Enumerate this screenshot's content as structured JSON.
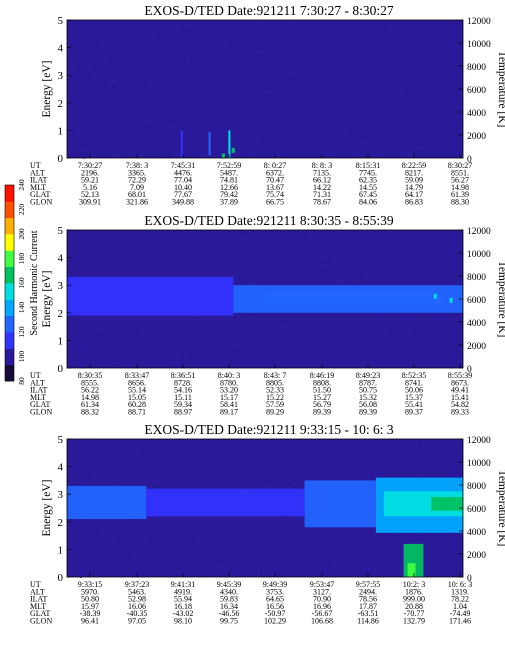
{
  "colorbar": {
    "label": "Second Harmonic Current",
    "ticks": [
      "80",
      "100",
      "120",
      "140",
      "160",
      "180",
      "200",
      "220",
      "240"
    ],
    "range": [
      80,
      240
    ],
    "colors": [
      "#1a0a3a",
      "#2a1a9a",
      "#3333ff",
      "#2266ff",
      "#00aaff",
      "#00e0e0",
      "#00c060",
      "#40ff40",
      "#ffff00",
      "#ffb000",
      "#ff5000",
      "#ff1000"
    ]
  },
  "chart_data": [
    {
      "type": "heatmap",
      "title": "EXOS-D/TED   Date:921211  7:30:27 - 8:30:27",
      "ylabel": "Energy [eV]",
      "y2label": "Temperature [K]",
      "ylim": [
        0,
        5
      ],
      "y_ticks": [
        "0",
        "1",
        "2",
        "3",
        "4",
        "5"
      ],
      "y2lim": [
        0,
        12000
      ],
      "y2_ticks": [
        "0",
        "2000",
        "4000",
        "6000",
        "8000",
        "10000",
        "12000"
      ],
      "background_level": 100,
      "features": [
        {
          "kind": "spike",
          "x": 0.41,
          "y0": 0.0,
          "y1": 1.0,
          "level": 150
        },
        {
          "kind": "spike",
          "x": 0.36,
          "y0": 0.1,
          "y1": 0.95,
          "level": 125
        },
        {
          "kind": "spike",
          "x": 0.29,
          "y0": 0.0,
          "y1": 1.0,
          "level": 118
        },
        {
          "kind": "dot",
          "x": 0.42,
          "y": 0.28,
          "level": 160
        },
        {
          "kind": "dot",
          "x": 0.395,
          "y": 0.07,
          "level": 165
        }
      ],
      "param_labels": [
        "UT",
        "ALT",
        "ILAT",
        "MLT",
        "GLAT",
        "GLON"
      ],
      "params": [
        [
          "7:30:27",
          "7:38: 3",
          "7:45:31",
          "7:52:59",
          "8: 0:27",
          "8: 8: 3",
          "8:15:31",
          "8:22:59",
          "8:30:27"
        ],
        [
          "2196.",
          "3365.",
          "4476.",
          "5487.",
          "6372.",
          "7135.",
          "7745.",
          "8217.",
          "8551."
        ],
        [
          "59.21",
          "72.29",
          "77.04",
          "74.81",
          "70.47",
          "66.12",
          "62.35",
          "59.09",
          "56.27"
        ],
        [
          "5.16",
          "7.09",
          "10.40",
          "12.66",
          "13.67",
          "14.22",
          "14.55",
          "14.79",
          "14.98"
        ],
        [
          "52.13",
          "68.01",
          "77.67",
          "79.42",
          "75.74",
          "71.31",
          "67.45",
          "64.17",
          "61.39"
        ],
        [
          "309.91",
          "321.86",
          "349.88",
          "37.89",
          "66.75",
          "78.67",
          "84.06",
          "86.83",
          "88.30"
        ]
      ]
    },
    {
      "type": "heatmap",
      "title": "EXOS-D/TED   Date:921211  8:30:35 - 8:55:39",
      "ylabel": "Energy [eV]",
      "y2label": "Temperature [K]",
      "ylim": [
        0,
        5
      ],
      "y_ticks": [
        "0",
        "1",
        "2",
        "3",
        "4",
        "5"
      ],
      "y2lim": [
        0,
        12000
      ],
      "y2_ticks": [
        "0",
        "2000",
        "4000",
        "6000",
        "8000",
        "10000",
        "12000"
      ],
      "background_level": 100,
      "features": [
        {
          "kind": "band",
          "x0": 0.0,
          "x1": 0.42,
          "y0": 1.9,
          "y1": 3.3,
          "level": 117
        },
        {
          "kind": "band",
          "x0": 0.42,
          "x1": 1.0,
          "y0": 2.0,
          "y1": 3.0,
          "level": 125
        },
        {
          "kind": "band",
          "x0": 0.5,
          "x1": 0.95,
          "y0": 2.3,
          "y1": 2.7,
          "level": 132
        },
        {
          "kind": "dot",
          "x": 0.93,
          "y": 2.6,
          "level": 150
        },
        {
          "kind": "dot",
          "x": 0.97,
          "y": 2.45,
          "level": 150
        }
      ],
      "param_labels": [
        "UT",
        "ALT",
        "ILAT",
        "MLT",
        "GLAT",
        "GLON"
      ],
      "params": [
        [
          "8:30:35",
          "8:33:47",
          "8:36:51",
          "8:40: 3",
          "8:43: 7",
          "8:46:19",
          "8:49:23",
          "8:52:35",
          "8:55:39"
        ],
        [
          "8555.",
          "8656.",
          "8728.",
          "8780.",
          "8805.",
          "8808.",
          "8787.",
          "8741.",
          "8673."
        ],
        [
          "56.22",
          "55.14",
          "54.16",
          "53.20",
          "52.33",
          "51.50",
          "50.75",
          "50.06",
          "49.41"
        ],
        [
          "14.98",
          "15.05",
          "15.11",
          "15.17",
          "15.22",
          "15.27",
          "15.32",
          "15.37",
          "15.41"
        ],
        [
          "61.34",
          "60.28",
          "59.34",
          "58.41",
          "57.59",
          "56.79",
          "56.08",
          "55.41",
          "54.82"
        ],
        [
          "88.32",
          "88.71",
          "88.97",
          "89.17",
          "89.29",
          "89.39",
          "89.39",
          "89.37",
          "89.33"
        ]
      ]
    },
    {
      "type": "heatmap",
      "title": "EXOS-D/TED   Date:921211  9:33:15 - 10: 6: 3",
      "ylabel": "Energy [eV]",
      "y2label": "Temperature [K]",
      "ylim": [
        0,
        5
      ],
      "y_ticks": [
        "0",
        "1",
        "2",
        "3",
        "4",
        "5"
      ],
      "y2lim": [
        0,
        12000
      ],
      "y2_ticks": [
        "0",
        "2000",
        "4000",
        "6000",
        "8000",
        "10000",
        "12000"
      ],
      "background_level": 100,
      "features": [
        {
          "kind": "band",
          "x0": 0.0,
          "x1": 0.2,
          "y0": 2.1,
          "y1": 3.3,
          "level": 128
        },
        {
          "kind": "band",
          "x0": 0.2,
          "x1": 0.6,
          "y0": 2.2,
          "y1": 3.2,
          "level": 112
        },
        {
          "kind": "band",
          "x0": 0.6,
          "x1": 0.78,
          "y0": 1.8,
          "y1": 3.5,
          "level": 122
        },
        {
          "kind": "band",
          "x0": 0.78,
          "x1": 1.0,
          "y0": 1.6,
          "y1": 3.6,
          "level": 140
        },
        {
          "kind": "band",
          "x0": 0.8,
          "x1": 1.0,
          "y0": 2.2,
          "y1": 3.1,
          "level": 158
        },
        {
          "kind": "band",
          "x0": 0.92,
          "x1": 1.0,
          "y0": 2.4,
          "y1": 2.9,
          "level": 168
        },
        {
          "kind": "band",
          "x0": 0.85,
          "x1": 0.9,
          "y0": 0.0,
          "y1": 1.2,
          "level": 162
        },
        {
          "kind": "band",
          "x0": 0.86,
          "x1": 0.88,
          "y0": 0.0,
          "y1": 0.5,
          "level": 180
        }
      ],
      "param_labels": [
        "UT",
        "ALT",
        "ILAT",
        "MLT",
        "GLAT",
        "GLON"
      ],
      "params": [
        [
          "9:33:15",
          "9:37:23",
          "9:41:31",
          "9:45:39",
          "9:49:39",
          "9:53:47",
          "9:57:55",
          "10:2: 3",
          "10: 6: 3"
        ],
        [
          "5970.",
          "5463.",
          "4919.",
          "4340.",
          "3753.",
          "3127.",
          "2494.",
          "1876.",
          "1319."
        ],
        [
          "50.80",
          "52.98",
          "55.94",
          "59.83",
          "64.65",
          "70.90",
          "78.56",
          "999.00",
          "78.22"
        ],
        [
          "15.97",
          "16.06",
          "16.18",
          "16.34",
          "16.56",
          "16.96",
          "17.87",
          "20.88",
          "1.04"
        ],
        [
          "-38.39",
          "-40.35",
          "-43.02",
          "-46.56",
          "-50.97",
          "-56.67",
          "-63.51",
          "-70.77",
          "-74.49"
        ],
        [
          "96.41",
          "97.05",
          "98.10",
          "99.75",
          "102.29",
          "106.68",
          "114.86",
          "132.79",
          "171.46"
        ]
      ]
    }
  ]
}
